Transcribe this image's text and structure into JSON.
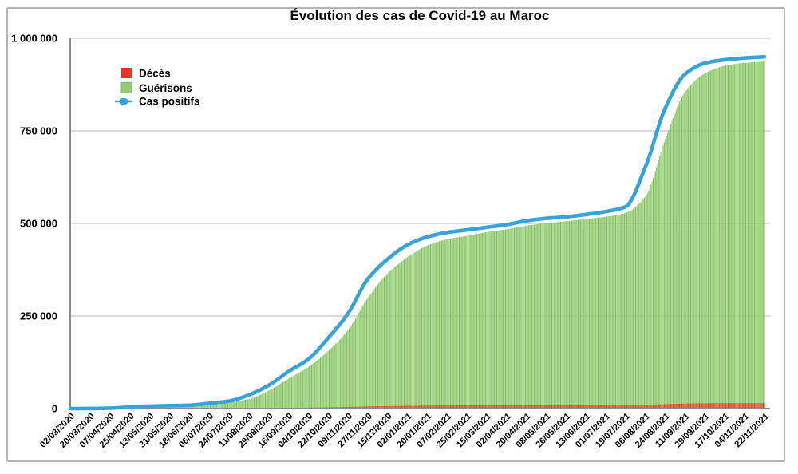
{
  "chart_data": {
    "type": "composed",
    "title": "Évolution des cas de Covid-19 au Maroc",
    "x_tick_interval_days": 18,
    "categories": [
      "02/03/2020",
      "20/03/2020",
      "07/04/2020",
      "25/04/2020",
      "13/05/2020",
      "31/05/2020",
      "18/06/2020",
      "06/07/2020",
      "24/07/2020",
      "11/08/2020",
      "29/08/2020",
      "16/09/2020",
      "04/10/2020",
      "22/10/2020",
      "09/11/2020",
      "27/11/2020",
      "15/12/2020",
      "02/01/2021",
      "20/01/2021",
      "07/02/2021",
      "25/02/2021",
      "15/03/2021",
      "02/04/2021",
      "20/04/2021",
      "08/05/2021",
      "26/05/2021",
      "13/06/2021",
      "01/07/2021",
      "19/07/2021",
      "06/08/2021",
      "24/08/2021",
      "11/09/2021",
      "29/09/2021",
      "17/10/2021",
      "04/11/2021",
      "22/11/2021"
    ],
    "series": [
      {
        "name": "Décès",
        "type": "bar",
        "color": "#e6342a",
        "color_alt": "#ef4b3b",
        "values": [
          0,
          3,
          93,
          161,
          188,
          202,
          210,
          232,
          313,
          556,
          1111,
          1795,
          2410,
          3205,
          4356,
          5739,
          6711,
          7452,
          8128,
          8465,
          8638,
          8760,
          8865,
          8970,
          9072,
          9145,
          9228,
          9346,
          9539,
          10243,
          11889,
          13640,
          14409,
          14740,
          14797,
          14818
        ]
      },
      {
        "name": "Guérisons",
        "type": "bar",
        "color": "#7cbe53",
        "color_alt": "#93cc72",
        "values": [
          0,
          2,
          76,
          526,
          3244,
          5195,
          7929,
          9837,
          16438,
          25677,
          48211,
          80558,
          112143,
          155586,
          212040,
          298574,
          365097,
          408935,
          440144,
          457414,
          466282,
          476501,
          484321,
          493880,
          500445,
          505775,
          511743,
          518078,
          528395,
          573364,
          727796,
          855315,
          905435,
          925914,
          933734,
          937164
        ]
      },
      {
        "name": "Cas positifs",
        "type": "line",
        "color": "#38a3db",
        "values": [
          1,
          77,
          1184,
          3897,
          6608,
          7807,
          9042,
          14215,
          20278,
          36694,
          62590,
          99816,
          133272,
          190416,
          256781,
          349688,
          403619,
          442141,
          463706,
          475602,
          482514,
          489622,
          496676,
          507108,
          513628,
          517808,
          523999,
          532150,
          545277,
          653286,
          812012,
          903346,
          932899,
          941916,
          946866,
          949935
        ]
      }
    ],
    "y_ticks": {
      "values": [
        0,
        250000,
        500000,
        750000,
        1000000
      ],
      "labels": [
        "0",
        "250 000",
        "500 000",
        "750 000",
        "1 000 000"
      ]
    },
    "ylim": [
      0,
      1000000
    ],
    "grid": "horizontal",
    "legend_position": "top-left-inside",
    "palette": {
      "grid_line": "#bababa",
      "axis_line": "#8a8a8a",
      "frame_border": "#b5b5b5",
      "background": "#ffffff",
      "text": "#000000"
    }
  }
}
